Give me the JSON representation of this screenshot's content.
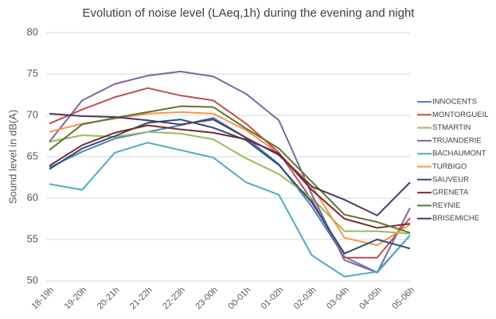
{
  "chart_data": {
    "type": "line",
    "title": "Evolution of noise level (LAeq,1h) during the evening and night",
    "y_label": "Sound level in dB(A)",
    "categories": [
      "18-19h",
      "19-20h",
      "20-21h",
      "21-22h",
      "22-23h",
      "23-00h",
      "00-01h",
      "01-02h",
      "02-03h",
      "03-04h",
      "04-05h",
      "05-06h"
    ],
    "ylim": [
      50,
      80
    ],
    "yticks": [
      50,
      55,
      60,
      65,
      70,
      75,
      80
    ],
    "grid": true,
    "legend": "right",
    "series": [
      {
        "name": "INNOCENTS",
        "color": "#4f81bd",
        "values": [
          63.7,
          65.6,
          67.2,
          68.0,
          68.8,
          69.7,
          67.3,
          64.1,
          59.0,
          52.9,
          51.0,
          55.5
        ]
      },
      {
        "name": "MONTORGUEIL",
        "color": "#c0504d",
        "values": [
          69.0,
          70.7,
          72.2,
          73.3,
          72.4,
          71.8,
          69.0,
          65.5,
          59.8,
          52.8,
          52.8,
          57.6
        ]
      },
      {
        "name": "STMARTIN",
        "color": "#9bbb59",
        "values": [
          66.8,
          67.6,
          67.4,
          68.0,
          67.8,
          67.1,
          64.8,
          62.9,
          60.0,
          56.0,
          56.0,
          55.7
        ]
      },
      {
        "name": "TRUANDERIE",
        "color": "#8064a2",
        "values": [
          66.8,
          71.8,
          73.8,
          74.8,
          75.3,
          74.7,
          72.6,
          69.4,
          60.5,
          52.5,
          51.0,
          58.8
        ]
      },
      {
        "name": "BACHAUMONT",
        "color": "#4bacc6",
        "values": [
          61.7,
          61.0,
          65.5,
          66.7,
          65.8,
          64.9,
          61.9,
          60.4,
          53.1,
          50.5,
          51.1,
          55.5
        ]
      },
      {
        "name": "TURBIGO",
        "color": "#f79646",
        "values": [
          68.0,
          69.0,
          69.6,
          70.2,
          70.4,
          70.2,
          68.2,
          65.4,
          61.5,
          55.2,
          54.3,
          56.8
        ]
      },
      {
        "name": "SAUVEUR",
        "color": "#2c4d75",
        "values": [
          63.5,
          66.0,
          67.5,
          69.1,
          69.5,
          68.5,
          67.0,
          64.0,
          59.5,
          53.3,
          55.0,
          53.9
        ]
      },
      {
        "name": "GRENETA",
        "color": "#772c2a",
        "values": [
          63.9,
          66.4,
          67.9,
          68.8,
          68.3,
          67.9,
          67.1,
          65.4,
          61.0,
          57.5,
          56.4,
          56.9
        ]
      },
      {
        "name": "REYNIE",
        "color": "#5f7530",
        "values": [
          65.8,
          68.9,
          69.7,
          70.4,
          71.1,
          71.0,
          68.4,
          66.0,
          62.0,
          58.0,
          57.1,
          55.8
        ]
      },
      {
        "name": "BRISEMICHE",
        "color": "#4d3b62",
        "values": [
          70.2,
          69.9,
          69.8,
          69.4,
          68.9,
          69.5,
          67.3,
          65.2,
          61.4,
          59.8,
          57.9,
          61.9
        ]
      }
    ]
  }
}
